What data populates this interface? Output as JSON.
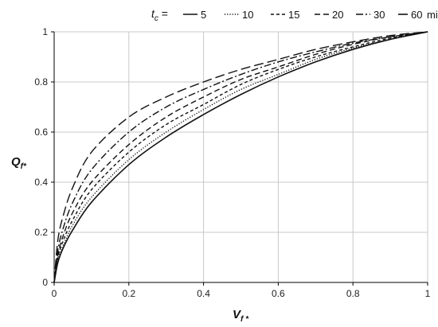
{
  "chart_data": {
    "type": "line",
    "xlabel": "V",
    "xlabel_sub": "f *",
    "ylabel": "Q",
    "ylabel_sub": "f*",
    "xlim": [
      0,
      1
    ],
    "ylim": [
      0,
      1
    ],
    "x_ticks": [
      "0",
      "0.2",
      "0.4",
      "0.6",
      "0.8",
      "1"
    ],
    "y_ticks": [
      "0",
      "0.2",
      "0.4",
      "0.6",
      "0.8",
      "1"
    ],
    "grid": true,
    "legend": {
      "placement": "top",
      "title_main": "t",
      "title_sub": "c",
      "title_suffix": " =",
      "unit": "min"
    },
    "series": [
      {
        "name": "5",
        "dash": "solid",
        "x": [
          0,
          0.01,
          0.025,
          0.05,
          0.1,
          0.2,
          0.3,
          0.4,
          0.5,
          0.6,
          0.7,
          0.8,
          0.9,
          1.0
        ],
        "y": [
          0,
          0.08,
          0.14,
          0.21,
          0.32,
          0.47,
          0.58,
          0.67,
          0.75,
          0.82,
          0.88,
          0.93,
          0.97,
          1.0
        ]
      },
      {
        "name": "10",
        "dash": "dotted",
        "x": [
          0,
          0.01,
          0.025,
          0.05,
          0.1,
          0.2,
          0.3,
          0.4,
          0.5,
          0.6,
          0.7,
          0.8,
          0.9,
          1.0
        ],
        "y": [
          0,
          0.09,
          0.15,
          0.23,
          0.34,
          0.49,
          0.6,
          0.69,
          0.77,
          0.83,
          0.89,
          0.935,
          0.97,
          1.0
        ]
      },
      {
        "name": "15",
        "dash": "short-dash",
        "x": [
          0,
          0.01,
          0.025,
          0.05,
          0.1,
          0.2,
          0.3,
          0.4,
          0.5,
          0.6,
          0.7,
          0.8,
          0.9,
          1.0
        ],
        "y": [
          0,
          0.1,
          0.17,
          0.25,
          0.37,
          0.52,
          0.63,
          0.71,
          0.79,
          0.85,
          0.9,
          0.94,
          0.975,
          1.0
        ]
      },
      {
        "name": "20",
        "dash": "dash",
        "x": [
          0,
          0.01,
          0.025,
          0.05,
          0.1,
          0.2,
          0.3,
          0.4,
          0.5,
          0.6,
          0.7,
          0.8,
          0.9,
          1.0
        ],
        "y": [
          0,
          0.11,
          0.19,
          0.28,
          0.4,
          0.55,
          0.66,
          0.74,
          0.81,
          0.86,
          0.91,
          0.95,
          0.98,
          1.0
        ]
      },
      {
        "name": "30",
        "dash": "dash-dot",
        "x": [
          0,
          0.01,
          0.025,
          0.05,
          0.1,
          0.2,
          0.3,
          0.4,
          0.5,
          0.6,
          0.7,
          0.8,
          0.9,
          1.0
        ],
        "y": [
          0,
          0.13,
          0.22,
          0.32,
          0.45,
          0.6,
          0.7,
          0.77,
          0.83,
          0.88,
          0.92,
          0.955,
          0.98,
          1.0
        ]
      },
      {
        "name": "60",
        "dash": "long-dash",
        "x": [
          0,
          0.01,
          0.025,
          0.05,
          0.1,
          0.2,
          0.3,
          0.4,
          0.5,
          0.6,
          0.7,
          0.8,
          0.9,
          1.0
        ],
        "y": [
          0,
          0.17,
          0.27,
          0.38,
          0.52,
          0.66,
          0.74,
          0.8,
          0.85,
          0.89,
          0.93,
          0.96,
          0.985,
          1.0
        ]
      }
    ],
    "colors": {
      "line": "#111111",
      "grid": "#c8c8c8",
      "axis": "#000000"
    }
  }
}
